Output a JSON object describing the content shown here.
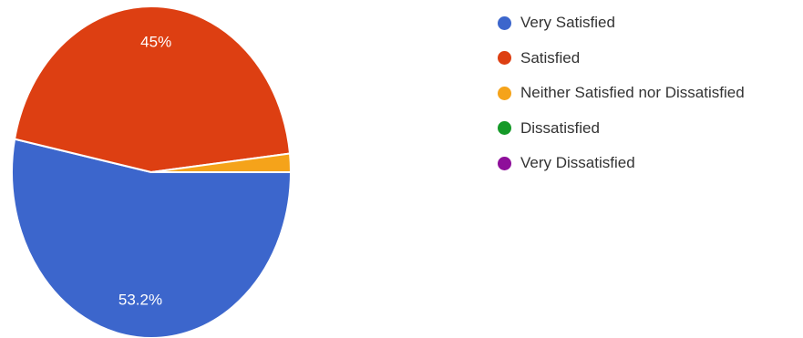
{
  "chart_data": {
    "type": "pie",
    "title": "",
    "slices": [
      {
        "name": "Very Satisfied",
        "value": 53.2,
        "label": "53.2%",
        "color": "#3c66cc"
      },
      {
        "name": "Satisfied",
        "value": 45,
        "label": "45%",
        "color": "#dd3f12"
      },
      {
        "name": "Neither Satisfied nor Dissatisfied",
        "value": 1.8,
        "label": "",
        "color": "#f5a31a"
      },
      {
        "name": "Dissatisfied",
        "value": 0,
        "label": "",
        "color": "#159a28"
      },
      {
        "name": "Very Dissatisfied",
        "value": 0,
        "label": "",
        "color": "#8e0f9a"
      }
    ],
    "legend_position": "right"
  }
}
